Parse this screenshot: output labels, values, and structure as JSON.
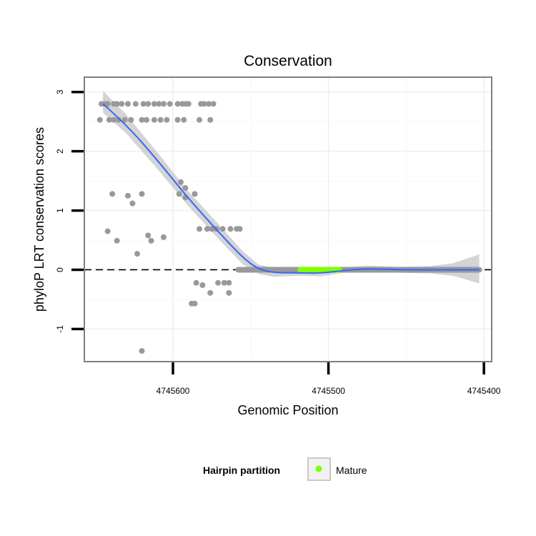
{
  "chart_data": {
    "type": "scatter",
    "title": "Conservation",
    "xlabel": "Genomic Position",
    "ylabel": "phyloP LRT conservation scores",
    "x_reversed": true,
    "xlim": [
      4745657,
      4745395
    ],
    "ylim": [
      -1.55,
      3.25
    ],
    "x_ticks": [
      4745600,
      4745500,
      4745400
    ],
    "x_tick_labels": [
      "4745600",
      "4745500",
      "4745400"
    ],
    "y_ticks": [
      -1,
      0,
      1,
      2,
      3
    ],
    "y_tick_labels": [
      "-1",
      "0",
      "1",
      "2",
      "3"
    ],
    "grid": true,
    "reference_line": {
      "y": 0,
      "style": "dashed"
    },
    "legend": {
      "title": "Hairpin partition",
      "placement": "bottom",
      "entries": [
        {
          "label": "Mature",
          "color": "#7fff00"
        }
      ]
    },
    "colors": {
      "points": "#999999",
      "mature": "#7fff00",
      "smooth": "#3366ff",
      "band": "#bdbdbd"
    },
    "points": [
      {
        "x": 4745646,
        "y": 2.8
      },
      {
        "x": 4745644,
        "y": 2.8
      },
      {
        "x": 4745642,
        "y": 2.8
      },
      {
        "x": 4745638,
        "y": 2.8
      },
      {
        "x": 4745636,
        "y": 2.8
      },
      {
        "x": 4745633,
        "y": 2.8
      },
      {
        "x": 4745629,
        "y": 2.8
      },
      {
        "x": 4745624,
        "y": 2.8
      },
      {
        "x": 4745619,
        "y": 2.8
      },
      {
        "x": 4745616,
        "y": 2.8
      },
      {
        "x": 4745612,
        "y": 2.8
      },
      {
        "x": 4745609,
        "y": 2.8
      },
      {
        "x": 4745606,
        "y": 2.8
      },
      {
        "x": 4745602,
        "y": 2.8
      },
      {
        "x": 4745597,
        "y": 2.8
      },
      {
        "x": 4745594,
        "y": 2.8
      },
      {
        "x": 4745592,
        "y": 2.8
      },
      {
        "x": 4745590,
        "y": 2.8
      },
      {
        "x": 4745582,
        "y": 2.8
      },
      {
        "x": 4745580,
        "y": 2.8
      },
      {
        "x": 4745577,
        "y": 2.8
      },
      {
        "x": 4745574,
        "y": 2.8
      },
      {
        "x": 4745647,
        "y": 2.53
      },
      {
        "x": 4745641,
        "y": 2.53
      },
      {
        "x": 4745638,
        "y": 2.53
      },
      {
        "x": 4745635,
        "y": 2.53
      },
      {
        "x": 4745631,
        "y": 2.53
      },
      {
        "x": 4745627,
        "y": 2.53
      },
      {
        "x": 4745620,
        "y": 2.53
      },
      {
        "x": 4745617,
        "y": 2.53
      },
      {
        "x": 4745612,
        "y": 2.53
      },
      {
        "x": 4745608,
        "y": 2.53
      },
      {
        "x": 4745604,
        "y": 2.53
      },
      {
        "x": 4745597,
        "y": 2.53
      },
      {
        "x": 4745593,
        "y": 2.53
      },
      {
        "x": 4745583,
        "y": 2.53
      },
      {
        "x": 4745576,
        "y": 2.53
      },
      {
        "x": 4745595,
        "y": 1.48
      },
      {
        "x": 4745592,
        "y": 1.38
      },
      {
        "x": 4745639,
        "y": 1.28
      },
      {
        "x": 4745620,
        "y": 1.28
      },
      {
        "x": 4745596,
        "y": 1.28
      },
      {
        "x": 4745586,
        "y": 1.28
      },
      {
        "x": 4745629,
        "y": 1.25
      },
      {
        "x": 4745592,
        "y": 1.22
      },
      {
        "x": 4745626,
        "y": 1.12
      },
      {
        "x": 4745642,
        "y": 0.65
      },
      {
        "x": 4745616,
        "y": 0.58
      },
      {
        "x": 4745606,
        "y": 0.55
      },
      {
        "x": 4745636,
        "y": 0.49
      },
      {
        "x": 4745614,
        "y": 0.49
      },
      {
        "x": 4745583,
        "y": 0.69
      },
      {
        "x": 4745578,
        "y": 0.69
      },
      {
        "x": 4745575,
        "y": 0.69
      },
      {
        "x": 4745572,
        "y": 0.69
      },
      {
        "x": 4745568,
        "y": 0.69
      },
      {
        "x": 4745563,
        "y": 0.69
      },
      {
        "x": 4745559,
        "y": 0.69
      },
      {
        "x": 4745557,
        "y": 0.69
      },
      {
        "x": 4745623,
        "y": 0.27
      },
      {
        "x": 4745585,
        "y": -0.22
      },
      {
        "x": 4745581,
        "y": -0.26
      },
      {
        "x": 4745571,
        "y": -0.22
      },
      {
        "x": 4745567,
        "y": -0.22
      },
      {
        "x": 4745564,
        "y": -0.22
      },
      {
        "x": 4745576,
        "y": -0.39
      },
      {
        "x": 4745564,
        "y": -0.39
      },
      {
        "x": 4745588,
        "y": -0.57
      },
      {
        "x": 4745586,
        "y": -0.57
      },
      {
        "x": 4745620,
        "y": -1.37
      }
    ],
    "zero_range": {
      "from": 4745558,
      "to": 4745403,
      "y": 0
    },
    "mature_range": {
      "from": 4745518,
      "to": 4745493
    },
    "smooth": [
      {
        "x": 4745645,
        "y": 2.8,
        "lo": 2.65,
        "hi": 3.02
      },
      {
        "x": 4745630,
        "y": 2.45,
        "lo": 2.3,
        "hi": 2.62
      },
      {
        "x": 4745610,
        "y": 1.85,
        "lo": 1.7,
        "hi": 1.98
      },
      {
        "x": 4745590,
        "y": 1.2,
        "lo": 1.07,
        "hi": 1.32
      },
      {
        "x": 4745570,
        "y": 0.62,
        "lo": 0.5,
        "hi": 0.75
      },
      {
        "x": 4745555,
        "y": 0.2,
        "lo": 0.09,
        "hi": 0.31
      },
      {
        "x": 4745545,
        "y": 0.01,
        "lo": -0.07,
        "hi": 0.09
      },
      {
        "x": 4745535,
        "y": -0.05,
        "lo": -0.12,
        "hi": 0.03
      },
      {
        "x": 4745520,
        "y": -0.05,
        "lo": -0.1,
        "hi": 0.0
      },
      {
        "x": 4745505,
        "y": -0.06,
        "lo": -0.11,
        "hi": -0.01
      },
      {
        "x": 4745490,
        "y": -0.01,
        "lo": -0.05,
        "hi": 0.04
      },
      {
        "x": 4745475,
        "y": 0.02,
        "lo": -0.03,
        "hi": 0.07
      },
      {
        "x": 4745455,
        "y": 0.0,
        "lo": -0.05,
        "hi": 0.05
      },
      {
        "x": 4745435,
        "y": 0.0,
        "lo": -0.06,
        "hi": 0.06
      },
      {
        "x": 4745420,
        "y": 0.0,
        "lo": -0.1,
        "hi": 0.11
      },
      {
        "x": 4745403,
        "y": 0.0,
        "lo": -0.23,
        "hi": 0.26
      }
    ]
  }
}
